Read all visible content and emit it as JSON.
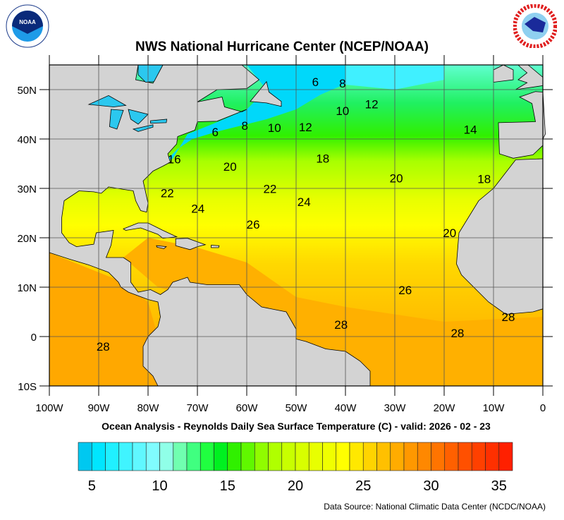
{
  "header": {
    "title": "NWS National Hurricane Center (NCEP/NOAA)",
    "logo_left": "NOAA",
    "logo_right": "NATIONAL WEATHER SERVICE"
  },
  "map": {
    "subtitle": "Ocean Analysis - Reynolds Daily Sea Surface Temperature (C) - valid: 2026 - 02 - 23",
    "lon_range": [
      -100,
      0
    ],
    "lat_range": [
      -10,
      55
    ],
    "lon_ticks": [
      {
        "v": -100,
        "label": "100W"
      },
      {
        "v": -90,
        "label": "90W"
      },
      {
        "v": -80,
        "label": "80W"
      },
      {
        "v": -70,
        "label": "70W"
      },
      {
        "v": -60,
        "label": "60W"
      },
      {
        "v": -50,
        "label": "50W"
      },
      {
        "v": -40,
        "label": "40W"
      },
      {
        "v": -30,
        "label": "30W"
      },
      {
        "v": -20,
        "label": "20W"
      },
      {
        "v": -10,
        "label": "10W"
      },
      {
        "v": 0,
        "label": "0"
      }
    ],
    "lat_ticks": [
      {
        "v": 50,
        "label": "50N"
      },
      {
        "v": 40,
        "label": "40N"
      },
      {
        "v": 30,
        "label": "30N"
      },
      {
        "v": 20,
        "label": "20N"
      },
      {
        "v": 10,
        "label": "10N"
      },
      {
        "v": 0,
        "label": "0"
      },
      {
        "v": -10,
        "label": "10S"
      }
    ],
    "land_color": "#d3d3d3",
    "contour_labels": [
      {
        "v": "6",
        "lon": -46.1,
        "lat": 51.6
      },
      {
        "v": "8",
        "lon": -40.6,
        "lat": 51.3
      },
      {
        "v": "10",
        "lon": -40.6,
        "lat": 45.7
      },
      {
        "v": "12",
        "lon": -34.7,
        "lat": 47.1
      },
      {
        "v": "14",
        "lon": -14.7,
        "lat": 41.9
      },
      {
        "v": "6",
        "lon": -66.4,
        "lat": 41.4
      },
      {
        "v": "8",
        "lon": -60.4,
        "lat": 42.7
      },
      {
        "v": "10",
        "lon": -54.4,
        "lat": 42.3
      },
      {
        "v": "12",
        "lon": -48.1,
        "lat": 42.4
      },
      {
        "v": "16",
        "lon": -74.7,
        "lat": 35.9
      },
      {
        "v": "20",
        "lon": -63.4,
        "lat": 34.4
      },
      {
        "v": "18",
        "lon": -44.6,
        "lat": 36.1
      },
      {
        "v": "20",
        "lon": -29.7,
        "lat": 32.1
      },
      {
        "v": "18",
        "lon": -11.9,
        "lat": 31.9
      },
      {
        "v": "22",
        "lon": -76.1,
        "lat": 29.1
      },
      {
        "v": "22",
        "lon": -55.3,
        "lat": 29.9
      },
      {
        "v": "24",
        "lon": -48.4,
        "lat": 27.3
      },
      {
        "v": "24",
        "lon": -69.9,
        "lat": 25.9
      },
      {
        "v": "26",
        "lon": -58.7,
        "lat": 22.7
      },
      {
        "v": "20",
        "lon": -18.9,
        "lat": 21.0
      },
      {
        "v": "26",
        "lon": -27.9,
        "lat": 9.4
      },
      {
        "v": "28",
        "lon": -40.9,
        "lat": 2.4
      },
      {
        "v": "28",
        "lon": -17.3,
        "lat": 0.7
      },
      {
        "v": "28",
        "lon": -7.0,
        "lat": 4.0
      },
      {
        "v": "28",
        "lon": -89.1,
        "lat": -2.0
      }
    ]
  },
  "colorbar": {
    "min": 4,
    "max": 36,
    "colors": [
      "#00c8f0",
      "#00e6ff",
      "#20f0ff",
      "#40f4ff",
      "#60f8ff",
      "#80fcff",
      "#90ffe8",
      "#70ffb0",
      "#40ff80",
      "#20ff40",
      "#00f020",
      "#30f000",
      "#60f800",
      "#90fc00",
      "#b0ff00",
      "#c8ff00",
      "#d8ff00",
      "#e8ff00",
      "#f0ff00",
      "#ffff00",
      "#ffe800",
      "#ffd400",
      "#ffc000",
      "#ffac00",
      "#ff9800",
      "#ff8800",
      "#ff7400",
      "#ff6000",
      "#ff5000",
      "#ff4000",
      "#ff3000",
      "#ff2000"
    ],
    "labels": [
      {
        "v": 5,
        "label": "5"
      },
      {
        "v": 10,
        "label": "10"
      },
      {
        "v": 15,
        "label": "15"
      },
      {
        "v": 20,
        "label": "20"
      },
      {
        "v": 25,
        "label": "25"
      },
      {
        "v": 30,
        "label": "30"
      },
      {
        "v": 35,
        "label": "35"
      }
    ]
  },
  "footer": {
    "source": "Data Source: National Climatic Data Center (NCDC/NOAA)"
  }
}
